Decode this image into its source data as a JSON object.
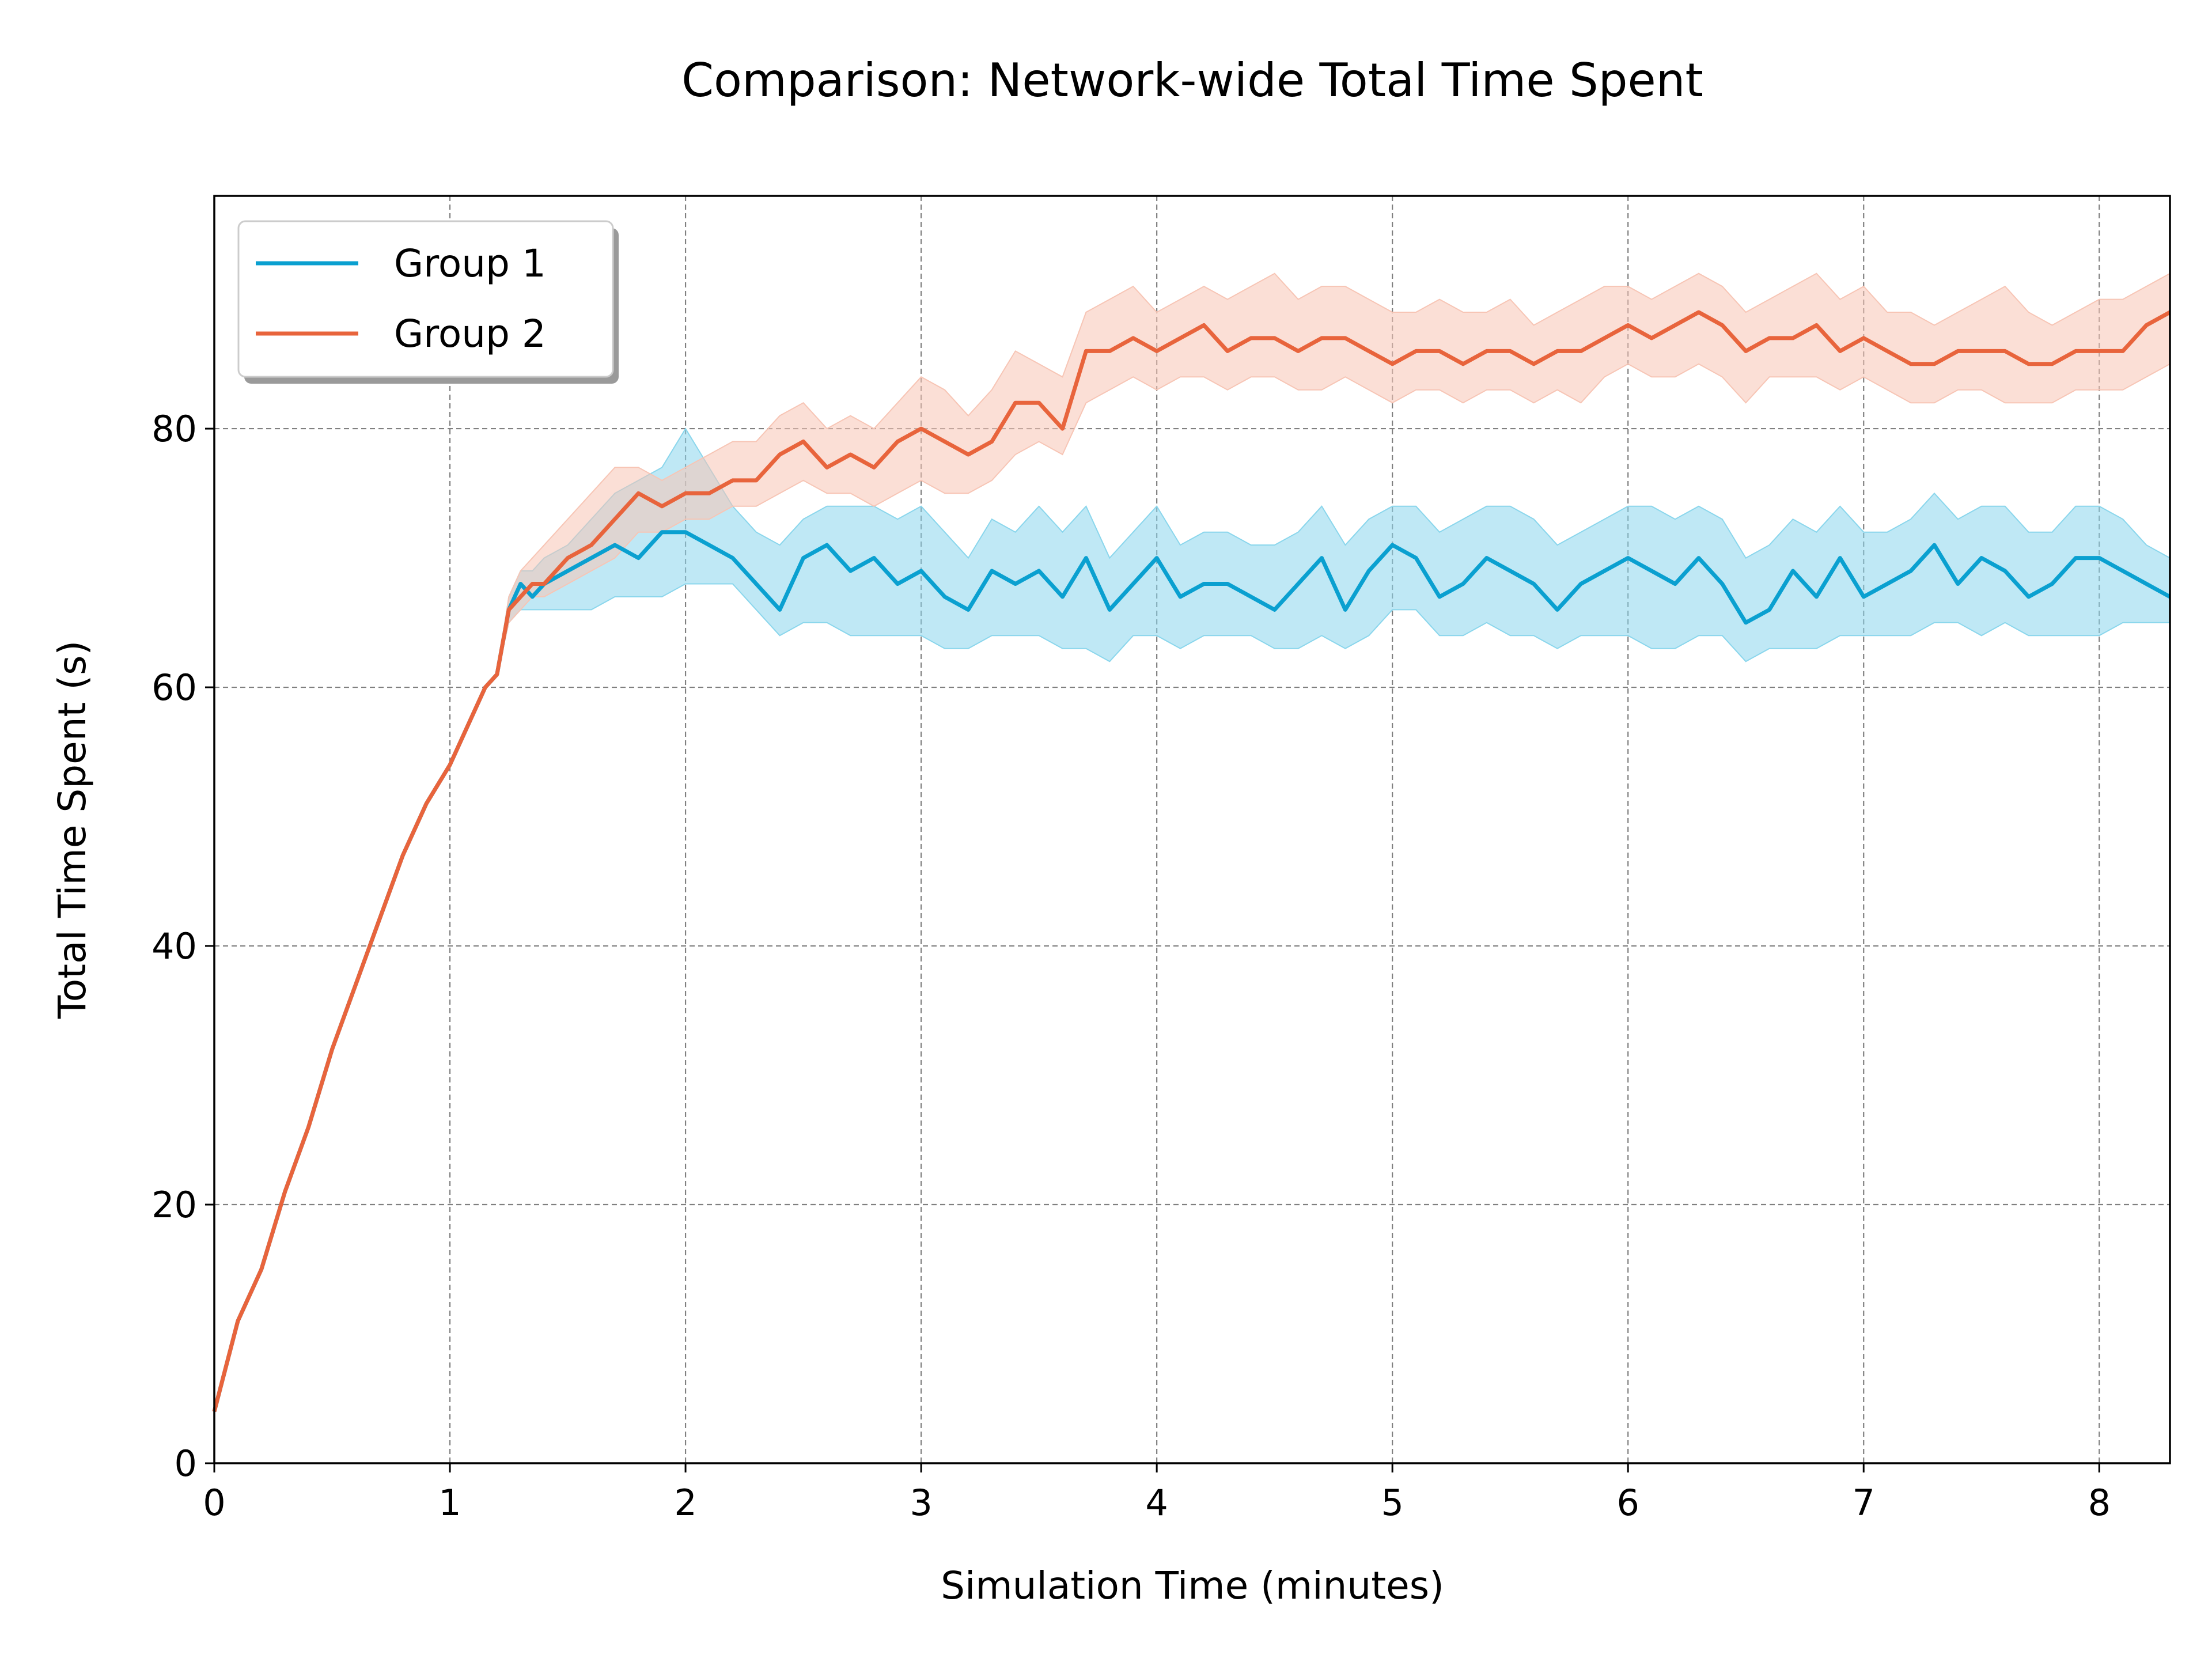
{
  "chart_data": {
    "type": "line",
    "title": "Comparison: Network-wide Total Time Spent",
    "xlabel": "Simulation Time (minutes)",
    "ylabel": "Total Time Spent (s)",
    "xlim": [
      0,
      8.3
    ],
    "ylim": [
      0,
      98
    ],
    "x_ticks": [
      0,
      1,
      2,
      3,
      4,
      5,
      6,
      7,
      8
    ],
    "y_ticks": [
      0,
      20,
      40,
      60,
      80
    ],
    "grid": true,
    "legend_position": "top-left",
    "series": [
      {
        "name": "Group 1",
        "color": "#0aa0d0",
        "band_color": "#8ad6ec",
        "x": [
          0,
          0.1,
          0.2,
          0.3,
          0.4,
          0.5,
          0.6,
          0.7,
          0.8,
          0.9,
          1.0,
          1.1,
          1.15,
          1.2,
          1.25,
          1.3,
          1.35,
          1.4,
          1.5,
          1.6,
          1.7,
          1.8,
          1.9,
          2.0,
          2.1,
          2.2,
          2.3,
          2.4,
          2.5,
          2.6,
          2.7,
          2.8,
          2.9,
          3.0,
          3.1,
          3.2,
          3.3,
          3.4,
          3.5,
          3.6,
          3.7,
          3.8,
          3.9,
          4.0,
          4.1,
          4.2,
          4.3,
          4.4,
          4.5,
          4.6,
          4.7,
          4.8,
          4.9,
          5.0,
          5.1,
          5.2,
          5.3,
          5.4,
          5.5,
          5.6,
          5.7,
          5.8,
          5.9,
          6.0,
          6.1,
          6.2,
          6.3,
          6.4,
          6.5,
          6.6,
          6.7,
          6.8,
          6.9,
          7.0,
          7.1,
          7.2,
          7.3,
          7.4,
          7.5,
          7.6,
          7.7,
          7.8,
          7.9,
          8.0,
          8.1,
          8.2,
          8.3
        ],
        "y": [
          4,
          11,
          15,
          21,
          26,
          32,
          37,
          42,
          47,
          51,
          54,
          58,
          60,
          61,
          66,
          68,
          67,
          68,
          69,
          70,
          71,
          70,
          72,
          72,
          71,
          70,
          68,
          66,
          70,
          71,
          69,
          70,
          68,
          69,
          67,
          66,
          69,
          68,
          69,
          67,
          70,
          66,
          68,
          70,
          67,
          68,
          68,
          67,
          66,
          68,
          70,
          66,
          69,
          71,
          70,
          67,
          68,
          70,
          69,
          68,
          66,
          68,
          69,
          70,
          69,
          68,
          70,
          68,
          65,
          66,
          69,
          67,
          70,
          67,
          68,
          69,
          71,
          68,
          70,
          69,
          67,
          68,
          70,
          70,
          69,
          68,
          67
        ],
        "lower": [
          4,
          11,
          15,
          21,
          26,
          32,
          37,
          42,
          47,
          51,
          54,
          58,
          60,
          61,
          65,
          66,
          66,
          66,
          66,
          66,
          67,
          67,
          67,
          68,
          68,
          68,
          66,
          64,
          65,
          65,
          64,
          64,
          64,
          64,
          63,
          63,
          64,
          64,
          64,
          63,
          63,
          62,
          64,
          64,
          63,
          64,
          64,
          64,
          63,
          63,
          64,
          63,
          64,
          66,
          66,
          64,
          64,
          65,
          64,
          64,
          63,
          64,
          64,
          64,
          63,
          63,
          64,
          64,
          62,
          63,
          63,
          63,
          64,
          64,
          64,
          64,
          65,
          65,
          64,
          65,
          64,
          64,
          64,
          64,
          65,
          65,
          65
        ],
        "upper": [
          4,
          11,
          15,
          21,
          26,
          32,
          37,
          42,
          47,
          51,
          54,
          58,
          60,
          61,
          67,
          69,
          69,
          70,
          71,
          73,
          75,
          76,
          77,
          80,
          77,
          74,
          72,
          71,
          73,
          74,
          74,
          74,
          73,
          74,
          72,
          70,
          73,
          72,
          74,
          72,
          74,
          70,
          72,
          74,
          71,
          72,
          72,
          71,
          71,
          72,
          74,
          71,
          73,
          74,
          74,
          72,
          73,
          74,
          74,
          73,
          71,
          72,
          73,
          74,
          74,
          73,
          74,
          73,
          70,
          71,
          73,
          72,
          74,
          72,
          72,
          73,
          75,
          73,
          74,
          74,
          72,
          72,
          74,
          74,
          73,
          71,
          70
        ]
      },
      {
        "name": "Group 2",
        "color": "#e8643c",
        "band_color": "#f7c5b5",
        "x": [
          0,
          0.1,
          0.2,
          0.3,
          0.4,
          0.5,
          0.6,
          0.7,
          0.8,
          0.9,
          1.0,
          1.1,
          1.15,
          1.2,
          1.25,
          1.3,
          1.35,
          1.4,
          1.5,
          1.6,
          1.7,
          1.8,
          1.9,
          2.0,
          2.1,
          2.2,
          2.3,
          2.4,
          2.5,
          2.6,
          2.7,
          2.8,
          2.9,
          3.0,
          3.1,
          3.2,
          3.3,
          3.4,
          3.5,
          3.6,
          3.7,
          3.8,
          3.9,
          4.0,
          4.1,
          4.2,
          4.3,
          4.4,
          4.5,
          4.6,
          4.7,
          4.8,
          4.9,
          5.0,
          5.1,
          5.2,
          5.3,
          5.4,
          5.5,
          5.6,
          5.7,
          5.8,
          5.9,
          6.0,
          6.1,
          6.2,
          6.3,
          6.4,
          6.5,
          6.6,
          6.7,
          6.8,
          6.9,
          7.0,
          7.1,
          7.2,
          7.3,
          7.4,
          7.5,
          7.6,
          7.7,
          7.8,
          7.9,
          8.0,
          8.1,
          8.2,
          8.3
        ],
        "y": [
          4,
          11,
          15,
          21,
          26,
          32,
          37,
          42,
          47,
          51,
          54,
          58,
          60,
          61,
          66,
          67,
          68,
          68,
          70,
          71,
          73,
          75,
          74,
          75,
          75,
          76,
          76,
          78,
          79,
          77,
          78,
          77,
          79,
          80,
          79,
          78,
          79,
          82,
          82,
          80,
          86,
          86,
          87,
          86,
          87,
          88,
          86,
          87,
          87,
          86,
          87,
          87,
          86,
          85,
          86,
          86,
          85,
          86,
          86,
          85,
          86,
          86,
          87,
          88,
          87,
          88,
          89,
          88,
          86,
          87,
          87,
          88,
          86,
          87,
          86,
          85,
          85,
          86,
          86,
          86,
          85,
          85,
          86,
          86,
          86,
          88,
          89
        ],
        "lower": [
          4,
          11,
          15,
          21,
          26,
          32,
          37,
          42,
          47,
          51,
          54,
          58,
          60,
          61,
          65,
          66,
          67,
          67,
          68,
          69,
          70,
          72,
          72,
          73,
          73,
          74,
          74,
          75,
          76,
          75,
          75,
          74,
          75,
          76,
          75,
          75,
          76,
          78,
          79,
          78,
          82,
          83,
          84,
          83,
          84,
          84,
          83,
          84,
          84,
          83,
          83,
          84,
          83,
          82,
          83,
          83,
          82,
          83,
          83,
          82,
          83,
          82,
          84,
          85,
          84,
          84,
          85,
          84,
          82,
          84,
          84,
          84,
          83,
          84,
          83,
          82,
          82,
          83,
          83,
          82,
          82,
          82,
          83,
          83,
          83,
          84,
          85
        ],
        "upper": [
          4,
          11,
          15,
          21,
          26,
          32,
          37,
          42,
          47,
          51,
          54,
          58,
          60,
          61,
          67,
          69,
          70,
          71,
          73,
          75,
          77,
          77,
          76,
          77,
          78,
          79,
          79,
          81,
          82,
          80,
          81,
          80,
          82,
          84,
          83,
          81,
          83,
          86,
          85,
          84,
          89,
          90,
          91,
          89,
          90,
          91,
          90,
          91,
          92,
          90,
          91,
          91,
          90,
          89,
          89,
          90,
          89,
          89,
          90,
          88,
          89,
          90,
          91,
          91,
          90,
          91,
          92,
          91,
          89,
          90,
          91,
          92,
          90,
          91,
          89,
          89,
          88,
          89,
          90,
          91,
          89,
          88,
          89,
          90,
          90,
          91,
          92
        ]
      }
    ]
  }
}
